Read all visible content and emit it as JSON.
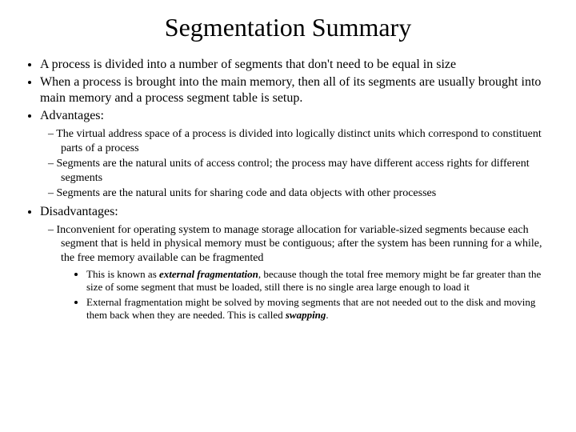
{
  "title": "Segmentation Summary",
  "b1": "A process is divided into a number of segments that don't need to be equal in size",
  "b2": "When a process is brought into the main memory, then all of its segments are usually brought into main memory and a process segment table is setup.",
  "b3": "Advantages:",
  "b3a": "The virtual address space of a process is divided into logically distinct units which correspond to constituent parts of a process",
  "b3b": "Segments are the natural units of access control; the process may have different access rights for different segments",
  "b3c": "Segments are the natural units for sharing code and data objects with other processes",
  "b4": "Disadvantages:",
  "b4a": "Inconvenient for operating system to manage storage allocation for variable-sized segments because each segment that is held in physical memory must be contiguous; after the system has been running for a while, the free memory available can be fragmented",
  "b4a1_pre": "This is known as ",
  "b4a1_em": "external fragmentation",
  "b4a1_post": ", because though the total free memory might be far greater than the size of some segment that must be loaded, still there is no single area large enough to load it",
  "b4a2_pre": "External fragmentation might be solved by moving segments that are not needed out to the disk and moving them back when they are needed. This is called ",
  "b4a2_em": "swapping",
  "b4a2_post": "."
}
